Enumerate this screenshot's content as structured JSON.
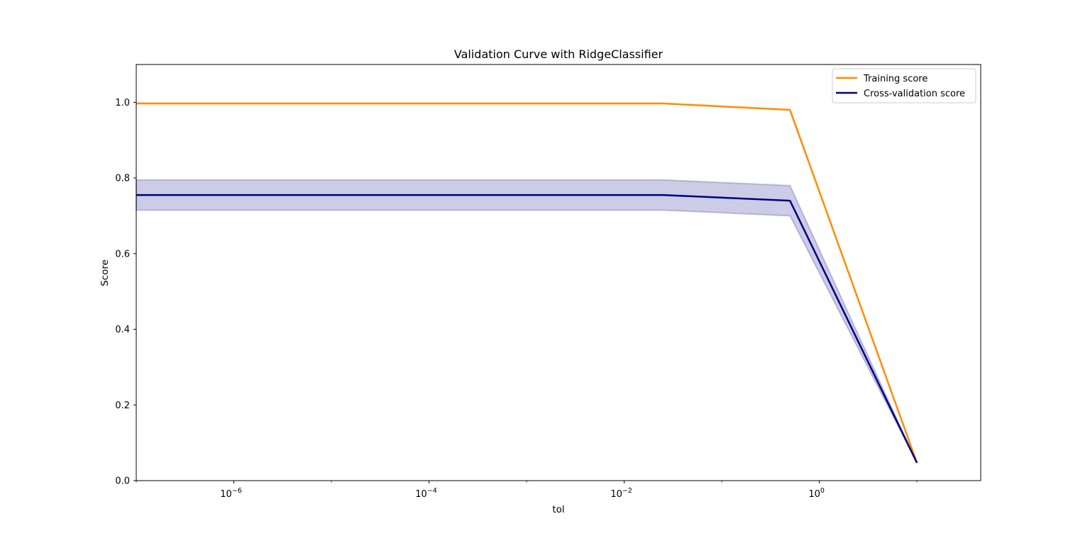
{
  "chart_data": {
    "type": "line",
    "title": "Validation Curve with RidgeClassifier",
    "xlabel": "tol",
    "ylabel": "Score",
    "xscale": "log",
    "xlim": [
      1e-07,
      45
    ],
    "ylim": [
      0.0,
      1.1
    ],
    "grid": false,
    "legend_position": "top-right",
    "x": [
      1e-07,
      0.025,
      0.5,
      10
    ],
    "series": [
      {
        "name": "Training score",
        "color": "#ff8c00",
        "values": [
          0.997,
          0.997,
          0.98,
          0.047
        ]
      },
      {
        "name": "Cross-validation score",
        "color": "#000080",
        "values": [
          0.755,
          0.755,
          0.74,
          0.047
        ],
        "band_lower": [
          0.715,
          0.715,
          0.7,
          0.047
        ],
        "band_upper": [
          0.795,
          0.795,
          0.78,
          0.047
        ],
        "band_color": "#000080"
      }
    ],
    "x_ticks": [
      {
        "value": 1e-06,
        "base": "10",
        "exp": "−6"
      },
      {
        "value": 0.0001,
        "base": "10",
        "exp": "−4"
      },
      {
        "value": 0.01,
        "base": "10",
        "exp": "−2"
      },
      {
        "value": 1,
        "base": "10",
        "exp": "0"
      }
    ],
    "y_ticks": [
      {
        "value": 0.0,
        "label": "0.0"
      },
      {
        "value": 0.2,
        "label": "0.2"
      },
      {
        "value": 0.4,
        "label": "0.4"
      },
      {
        "value": 0.6,
        "label": "0.6"
      },
      {
        "value": 0.8,
        "label": "0.8"
      },
      {
        "value": 1.0,
        "label": "1.0"
      }
    ]
  }
}
